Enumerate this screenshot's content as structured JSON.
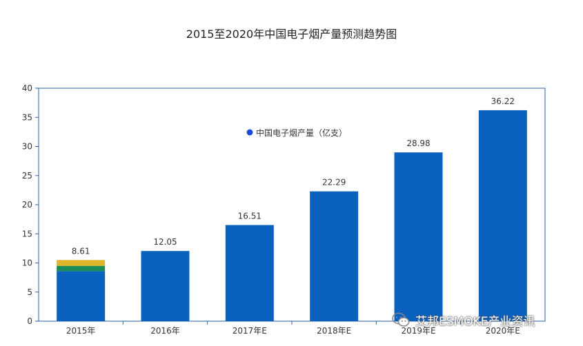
{
  "chart_data": {
    "type": "bar",
    "title": "2015至2020年中国电子烟产量预测趋势图",
    "categories": [
      "2015年",
      "2016年",
      "2017年E",
      "2018年E",
      "2019年E",
      "2020年E"
    ],
    "series": [
      {
        "name": "中国电子烟产量（亿支）",
        "values": [
          8.61,
          12.05,
          16.51,
          22.29,
          28.98,
          36.22
        ]
      }
    ],
    "overlay_segments_2015": [
      {
        "from": 8.61,
        "to": 9.5,
        "color": "#1a8c57"
      },
      {
        "from": 9.5,
        "to": 10.5,
        "color": "#dfb52a"
      }
    ],
    "data_labels": [
      "8.61",
      "12.05",
      "16.51",
      "22.29",
      "28.98",
      "36.22"
    ],
    "y_ticks": [
      0,
      5,
      10,
      15,
      20,
      25,
      30,
      35,
      40
    ],
    "ylim": [
      0,
      40
    ],
    "grid": false,
    "legend_position": "top-center",
    "colors": {
      "bar": "#0a62be",
      "axis": "#2a5fa8",
      "legend_dot": "#1c49d6",
      "text": "#333333"
    }
  },
  "watermark": {
    "text": "艾邦ESMOKE产业资讯",
    "icon": "wechat-icon"
  }
}
